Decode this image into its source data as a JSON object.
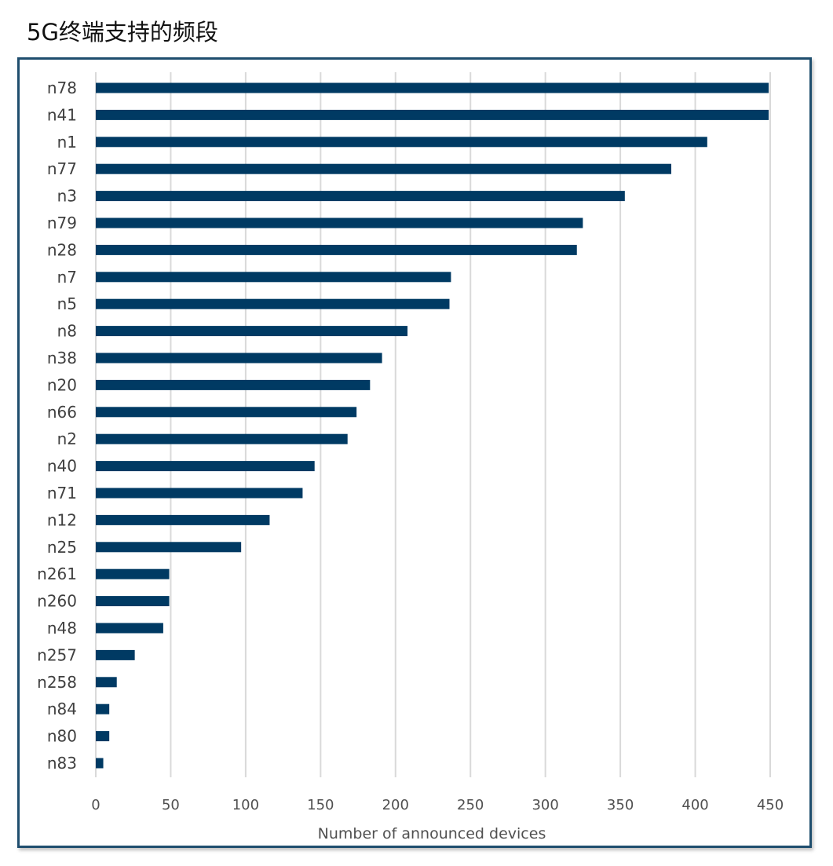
{
  "chart_data": {
    "type": "bar",
    "orientation": "horizontal",
    "title": "5G终端支持的频段",
    "xlabel": "Number of announced devices",
    "ylabel": "",
    "xlim": [
      0,
      450
    ],
    "xticks": [
      0,
      50,
      100,
      150,
      200,
      250,
      300,
      350,
      400,
      450
    ],
    "grid": true,
    "legend": "none",
    "bar_color": "#003a63",
    "categories": [
      "n78",
      "n41",
      "n1",
      "n77",
      "n3",
      "n79",
      "n28",
      "n7",
      "n5",
      "n8",
      "n38",
      "n20",
      "n66",
      "n2",
      "n40",
      "n71",
      "n12",
      "n25",
      "n261",
      "n260",
      "n48",
      "n257",
      "n258",
      "n84",
      "n80",
      "n83"
    ],
    "values": [
      449,
      449,
      408,
      384,
      353,
      325,
      321,
      237,
      236,
      208,
      191,
      183,
      174,
      168,
      146,
      138,
      116,
      97,
      49,
      49,
      45,
      26,
      14,
      9,
      9,
      5
    ]
  }
}
